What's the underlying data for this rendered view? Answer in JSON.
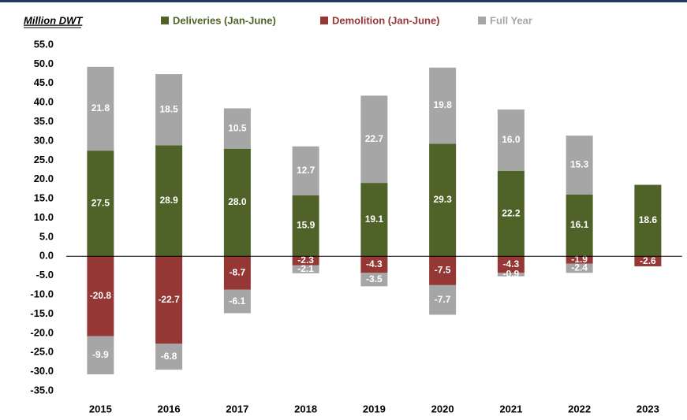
{
  "chart_data": {
    "type": "bar",
    "stacked": true,
    "y_label": "Million DWT",
    "categories": [
      "2015",
      "2016",
      "2017",
      "2018",
      "2019",
      "2020",
      "2021",
      "2022",
      "2023"
    ],
    "series": [
      {
        "name": "Deliveries (Jan-June)",
        "color": "#4f6228",
        "values": [
          27.5,
          28.9,
          28.0,
          15.9,
          19.1,
          29.3,
          22.2,
          16.1,
          18.6
        ],
        "value_labels": [
          "27.5",
          "28.9",
          "28.0",
          "15.9",
          "19.1",
          "29.3",
          "22.2",
          "16.1",
          "18.6"
        ]
      },
      {
        "name": "Demolition (Jan-June)",
        "color": "#953735",
        "values": [
          -20.8,
          -22.7,
          -8.7,
          -2.3,
          -4.3,
          -7.5,
          -4.3,
          -1.9,
          -2.6
        ],
        "value_labels": [
          "-20.8",
          "-22.7",
          "-8.7",
          "-2.3",
          "-4.3",
          "-7.5",
          "-4.3",
          "-1.9",
          "-2.6"
        ]
      },
      {
        "name": "Full Year",
        "color": "#a6a6a6",
        "values": [
          21.8,
          18.5,
          10.5,
          12.7,
          22.7,
          19.8,
          16.0,
          15.3,
          null
        ],
        "value_labels": [
          "21.8",
          "18.5",
          "10.5",
          "12.7",
          "22.7",
          "19.8",
          "16.0",
          "15.3",
          null
        ]
      },
      {
        "color": "#a6a6a6",
        "values": [
          -9.9,
          -6.8,
          -6.1,
          -2.1,
          -3.5,
          -7.7,
          -0.9,
          -2.4,
          null
        ],
        "value_labels": [
          "-9.9",
          "-6.8",
          "-6.1",
          "-2.1",
          "-3.5",
          "-7.7",
          "-0.9",
          "-2.4",
          null
        ]
      }
    ],
    "ylim": [
      -35,
      55
    ],
    "yticks": [
      {
        "value": -35,
        "label": "-35.0"
      },
      {
        "value": -30,
        "label": "-30.0"
      },
      {
        "value": -25,
        "label": "-25.0"
      },
      {
        "value": -20,
        "label": "-20.0"
      },
      {
        "value": -15,
        "label": "-15.0"
      },
      {
        "value": -10,
        "label": "-10.0"
      },
      {
        "value": -5,
        "label": "-5.0"
      },
      {
        "value": 0,
        "label": "0.0"
      },
      {
        "value": 5,
        "label": "5.0"
      },
      {
        "value": 10,
        "label": "10.0"
      },
      {
        "value": 15,
        "label": "15.0"
      },
      {
        "value": 20,
        "label": "20.0"
      },
      {
        "value": 25,
        "label": "25.0"
      },
      {
        "value": 30,
        "label": "30.0"
      },
      {
        "value": 35,
        "label": "35.0"
      },
      {
        "value": 40,
        "label": "40.0"
      },
      {
        "value": 45,
        "label": "45.0"
      },
      {
        "value": 50,
        "label": "50.0"
      },
      {
        "value": 55,
        "label": "55.0"
      }
    ],
    "grid": false,
    "legend": "top"
  }
}
